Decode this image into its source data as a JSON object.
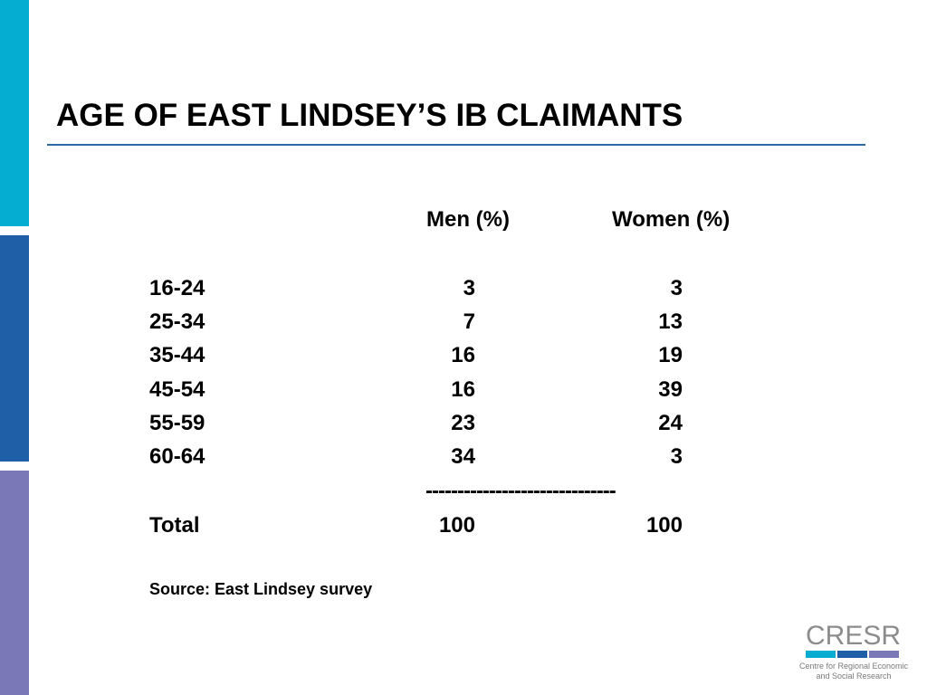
{
  "colors": {
    "bar_cyan": "#05aed1",
    "bar_blue": "#1f5fa8",
    "bar_purple": "#7b78b8",
    "title_rule": "#2a6aa8",
    "logo_text": "#8c8c8c"
  },
  "slide": {
    "title": "AGE OF EAST LINDSEY’S IB CLAIMANTS"
  },
  "table": {
    "headers": {
      "men": "Men (%)",
      "women": "Women (%)"
    },
    "rows": [
      {
        "age": "16-24",
        "men": "3",
        "women": "3"
      },
      {
        "age": "25-34",
        "men": "7",
        "women": "13"
      },
      {
        "age": "35-44",
        "men": "16",
        "women": "19"
      },
      {
        "age": "45-54",
        "men": "16",
        "women": "39"
      },
      {
        "age": "55-59",
        "men": "23",
        "women": "24"
      },
      {
        "age": "60-64",
        "men": "34",
        "women": "3"
      }
    ],
    "divider": "------------------------------",
    "total": {
      "label": "Total",
      "men": "100",
      "women": "100"
    }
  },
  "source": "Source: East Lindsey survey",
  "logo": {
    "word": "CRESR",
    "tagline_line1": "Centre for Regional Economic",
    "tagline_line2": "and Social Research"
  }
}
